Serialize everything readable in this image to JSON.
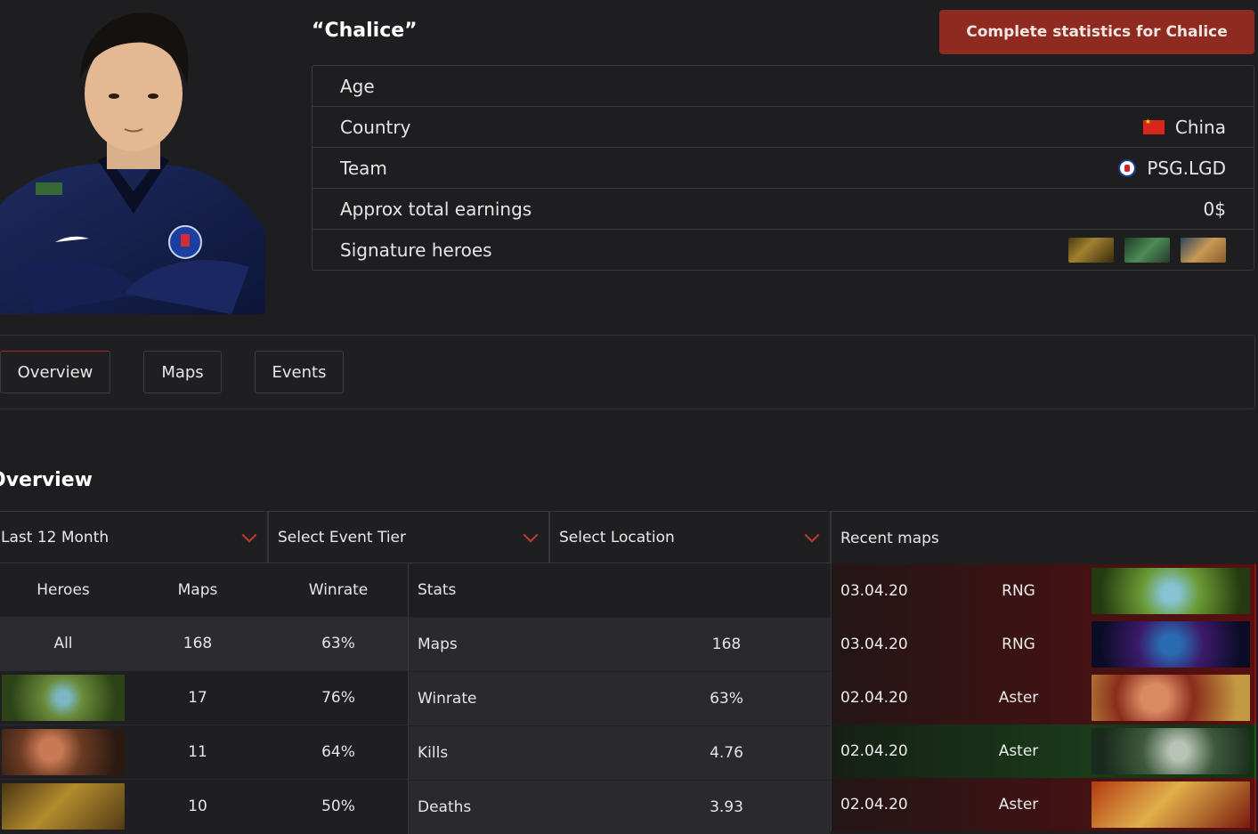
{
  "player": {
    "nickname": "“Chalice”",
    "stats_button": "Complete statistics for Chalice"
  },
  "info": [
    {
      "label": "Age",
      "value": ""
    },
    {
      "label": "Country",
      "value": "China",
      "icon": "china-flag-icon"
    },
    {
      "label": "Team",
      "value": "PSG.LGD",
      "icon": "psg-lgd-logo-icon"
    },
    {
      "label": "Approx total earnings",
      "value": "0$"
    },
    {
      "label": "Signature heroes",
      "value": ""
    }
  ],
  "tabs": [
    "Overview",
    "Maps",
    "Events"
  ],
  "overview": {
    "title": "Overview",
    "filters": [
      "Last 12 Month",
      "Select Event Tier",
      "Select Location"
    ],
    "heroes_table": {
      "headers": [
        "Heroes",
        "Maps",
        "Winrate"
      ],
      "all_row": {
        "hero": "All",
        "maps": "168",
        "winrate": "63%"
      },
      "rows": [
        {
          "maps": "17",
          "winrate": "76%"
        },
        {
          "maps": "11",
          "winrate": "64%"
        },
        {
          "maps": "10",
          "winrate": "50%"
        }
      ]
    },
    "stats_table": {
      "header": "Stats",
      "rows": [
        {
          "label": "Maps",
          "value": "168"
        },
        {
          "label": "Winrate",
          "value": "63%"
        },
        {
          "label": "Kills",
          "value": "4.76"
        },
        {
          "label": "Deaths",
          "value": "3.93"
        }
      ]
    },
    "recent_maps": {
      "header": "Recent maps",
      "rows": [
        {
          "date": "03.04.20",
          "opponent": "RNG",
          "result": "loss"
        },
        {
          "date": "03.04.20",
          "opponent": "RNG",
          "result": "loss"
        },
        {
          "date": "02.04.20",
          "opponent": "Aster",
          "result": "loss"
        },
        {
          "date": "02.04.20",
          "opponent": "Aster",
          "result": "win"
        },
        {
          "date": "02.04.20",
          "opponent": "Aster",
          "result": "loss"
        }
      ]
    }
  },
  "colors": {
    "accent": "#8f2a20",
    "chevron": "#c23a2d",
    "loss": "#5a0f10",
    "win": "#1a3a1a"
  }
}
